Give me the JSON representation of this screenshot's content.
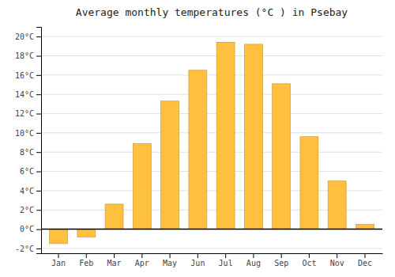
{
  "chart_data": {
    "type": "bar",
    "title": "Average monthly temperatures (°C ) in Psebay",
    "categories": [
      "Jan",
      "Feb",
      "Mar",
      "Apr",
      "May",
      "Jun",
      "Jul",
      "Aug",
      "Sep",
      "Oct",
      "Nov",
      "Dec"
    ],
    "values": [
      -1.5,
      -0.8,
      2.6,
      8.9,
      13.3,
      16.5,
      19.4,
      19.2,
      15.1,
      9.6,
      5.0,
      0.5
    ],
    "color": "#FFC040",
    "ylim": [
      -2.5,
      21.0
    ],
    "yticks": [
      {
        "value": -2,
        "label": "-2°C"
      },
      {
        "value": 0,
        "label": "0°C"
      },
      {
        "value": 2,
        "label": "2°C"
      },
      {
        "value": 4,
        "label": "4°C"
      },
      {
        "value": 6,
        "label": "6°C"
      },
      {
        "value": 8,
        "label": "8°C"
      },
      {
        "value": 10,
        "label": "10°C"
      },
      {
        "value": 12,
        "label": "12°C"
      },
      {
        "value": 14,
        "label": "14°C"
      },
      {
        "value": 16,
        "label": "16°C"
      },
      {
        "value": 18,
        "label": "18°C"
      },
      {
        "value": 20,
        "label": "20°C"
      }
    ],
    "grid": true
  }
}
